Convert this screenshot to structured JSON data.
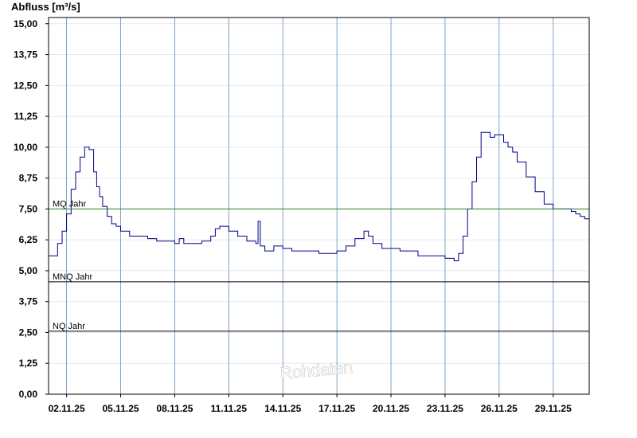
{
  "chart_data": {
    "type": "area",
    "title": "",
    "ylabel": "Abfluss [m³/s]",
    "xlabel": "",
    "ylim": [
      0,
      15.25
    ],
    "yticks": [
      "0,00",
      "1,25",
      "2,50",
      "3,75",
      "5,00",
      "6,25",
      "7,50",
      "8,75",
      "10,00",
      "11,25",
      "12,50",
      "13,75",
      "15,00"
    ],
    "x_start": "01.11.25",
    "x_end": "01.12.25",
    "xticks": [
      "02.11.25",
      "05.11.25",
      "08.11.25",
      "11.11.25",
      "14.11.25",
      "17.11.25",
      "20.11.25",
      "23.11.25",
      "26.11.25",
      "29.11.25"
    ],
    "watermark": "Rohdaten",
    "fill_color": "#2aa7ff",
    "line_color": "#00008b",
    "reference_lines": [
      {
        "label": "MQ Jahr",
        "value": 7.5,
        "color": "#2e7d32"
      },
      {
        "label": "MNQ Jahr",
        "value": 4.55,
        "color": "#000000"
      },
      {
        "label": "NQ Jahr",
        "value": 2.55,
        "color": "#000000"
      }
    ],
    "series": [
      {
        "x": [
          "01.11.25 00:00",
          "01.11.25 12:00",
          "01.11.25 18:00",
          "02.11.25 00:00",
          "02.11.25 06:00",
          "02.11.25 12:00",
          "02.11.25 18:00",
          "03.11.25 00:00",
          "03.11.25 06:00",
          "03.11.25 12:00",
          "03.11.25 16:00",
          "03.11.25 20:00",
          "04.11.25 00:00",
          "04.11.25 06:00",
          "04.11.25 12:00",
          "04.11.25 18:00",
          "05.11.25 00:00",
          "05.11.25 12:00",
          "06.11.25 00:00",
          "06.11.25 12:00",
          "07.11.25 00:00",
          "07.11.25 12:00",
          "08.11.25 00:00",
          "08.11.25 06:00",
          "08.11.25 12:00",
          "09.11.25 00:00",
          "09.11.25 12:00",
          "10.11.25 00:00",
          "10.11.25 06:00",
          "10.11.25 12:00",
          "11.11.25 00:00",
          "11.11.25 12:00",
          "12.11.25 00:00",
          "12.11.25 12:00",
          "12.11.25 15:00",
          "12.11.25 18:00",
          "13.11.25 00:00",
          "13.11.25 12:00",
          "14.11.25 00:00",
          "14.11.25 12:00",
          "15.11.25 00:00",
          "15.11.25 12:00",
          "16.11.25 00:00",
          "16.11.25 12:00",
          "17.11.25 00:00",
          "17.11.25 12:00",
          "18.11.25 00:00",
          "18.11.25 12:00",
          "18.11.25 18:00",
          "19.11.25 00:00",
          "19.11.25 12:00",
          "20.11.25 00:00",
          "20.11.25 12:00",
          "21.11.25 00:00",
          "21.11.25 12:00",
          "22.11.25 00:00",
          "22.11.25 12:00",
          "23.11.25 00:00",
          "23.11.25 06:00",
          "23.11.25 12:00",
          "23.11.25 18:00",
          "24.11.25 00:00",
          "24.11.25 06:00",
          "24.11.25 12:00",
          "24.11.25 18:00",
          "25.11.25 00:00",
          "25.11.25 06:00",
          "25.11.25 12:00",
          "25.11.25 18:00",
          "26.11.25 00:00",
          "26.11.25 06:00",
          "26.11.25 12:00",
          "26.11.25 18:00",
          "27.11.25 00:00",
          "27.11.25 12:00",
          "28.11.25 00:00",
          "28.11.25 12:00",
          "29.11.25 00:00",
          "29.11.25 12:00",
          "30.11.25 00:00",
          "30.11.25 06:00",
          "30.11.25 12:00",
          "30.11.25 18:00",
          "01.12.25 00:00"
        ],
        "values": [
          5.6,
          6.1,
          6.6,
          7.3,
          8.3,
          9.0,
          9.6,
          10.0,
          9.9,
          9.0,
          8.4,
          8.0,
          7.6,
          7.2,
          6.9,
          6.8,
          6.6,
          6.4,
          6.4,
          6.3,
          6.2,
          6.2,
          6.1,
          6.3,
          6.1,
          6.1,
          6.2,
          6.4,
          6.7,
          6.8,
          6.6,
          6.4,
          6.2,
          6.1,
          7.0,
          6.0,
          5.8,
          6.0,
          5.9,
          5.8,
          5.8,
          5.8,
          5.7,
          5.7,
          5.8,
          6.0,
          6.3,
          6.6,
          6.4,
          6.1,
          5.9,
          5.9,
          5.8,
          5.8,
          5.6,
          5.6,
          5.6,
          5.5,
          5.5,
          5.4,
          5.7,
          6.4,
          7.5,
          8.6,
          9.6,
          10.6,
          10.6,
          10.4,
          10.5,
          10.5,
          10.2,
          10.0,
          9.8,
          9.4,
          8.8,
          8.2,
          7.7,
          7.5,
          7.5,
          7.4,
          7.3,
          7.2,
          7.1,
          7.0
        ]
      }
    ]
  }
}
